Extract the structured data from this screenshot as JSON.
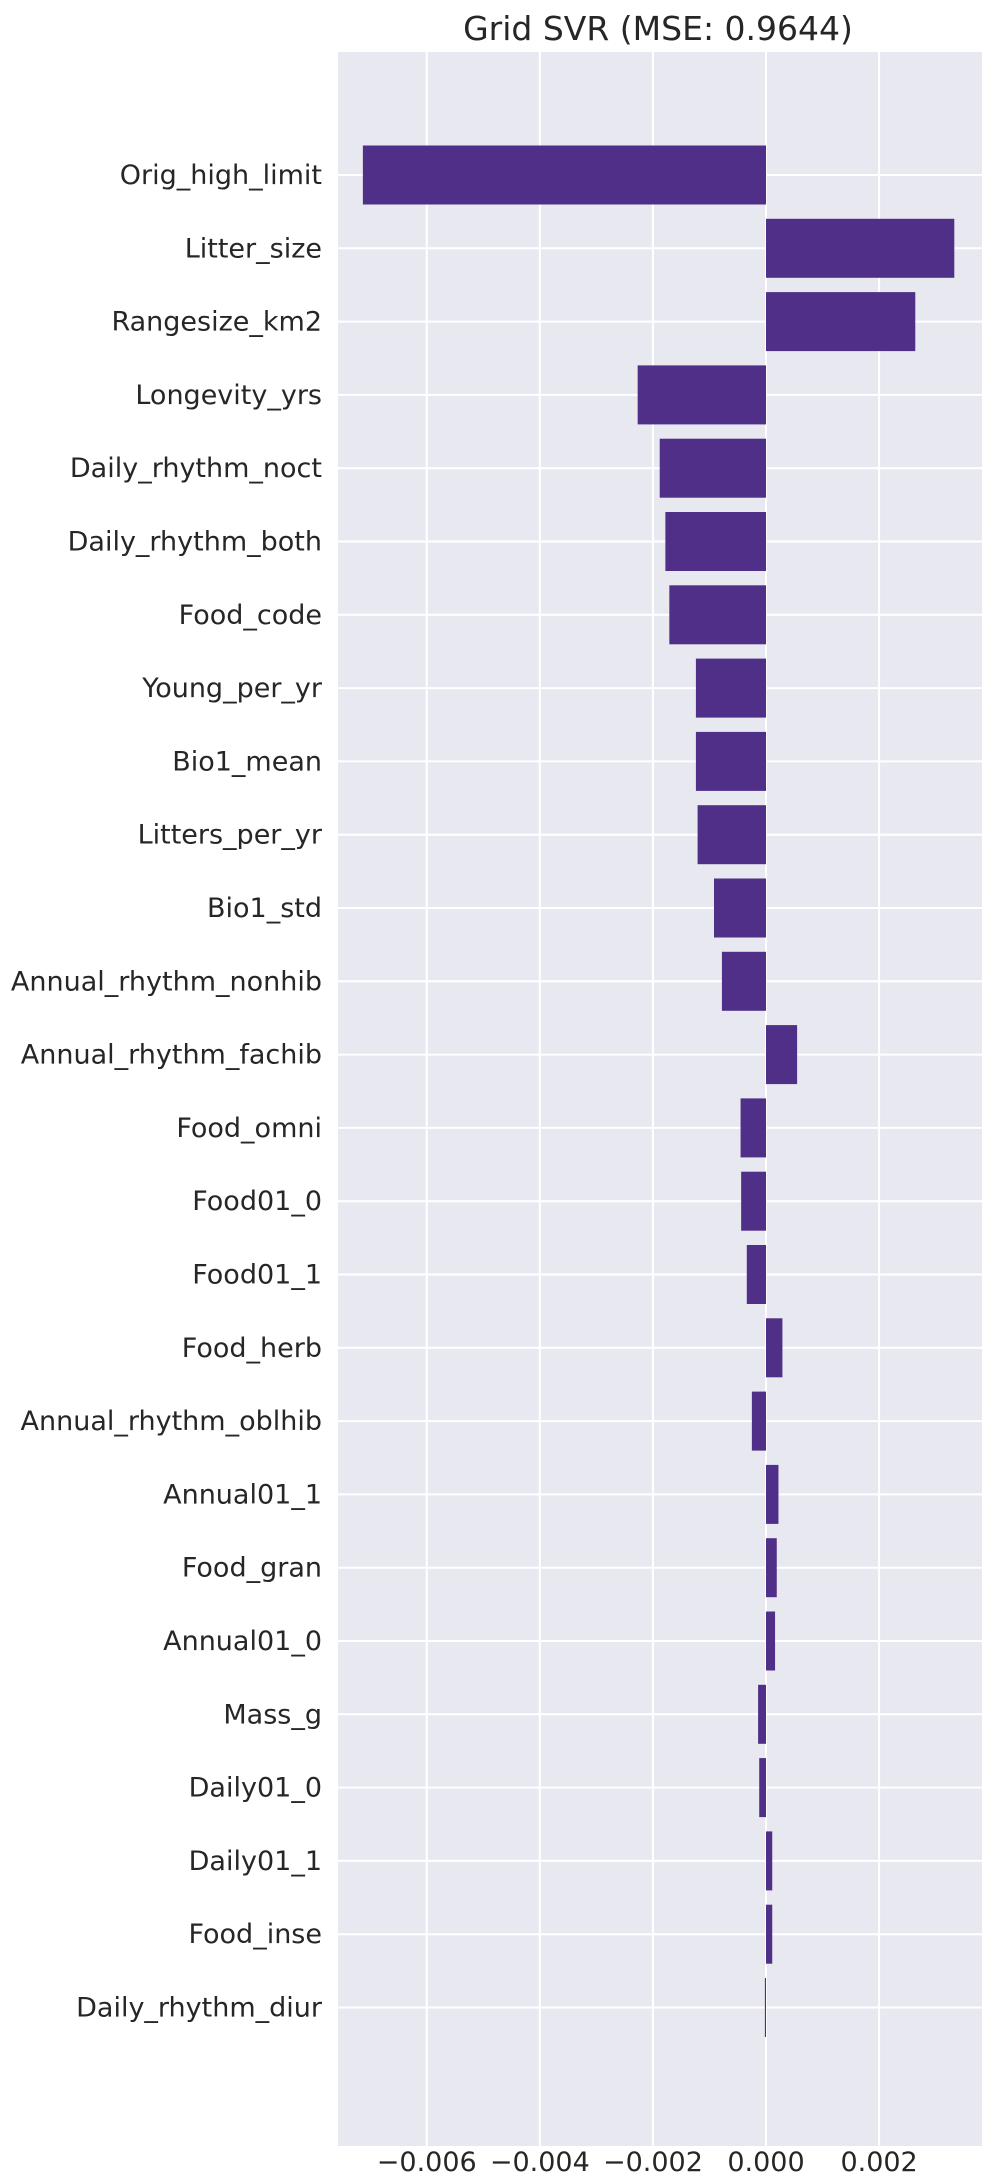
{
  "chart_data": {
    "type": "bar",
    "orientation": "horizontal",
    "title": "Grid SVR (MSE: 0.9644)",
    "xlabel": "",
    "ylabel": "",
    "xlim": [
      -0.00757,
      0.00382
    ],
    "xticks": [
      -0.006,
      -0.004,
      -0.002,
      0.0,
      0.002
    ],
    "xtick_labels": [
      "−0.006",
      "−0.004",
      "−0.002",
      "0.000",
      "0.002"
    ],
    "grid": true,
    "colors": {
      "bar": "#4f2f87",
      "plot_bg": "#e8e8f0",
      "grid": "#ffffff",
      "text": "#262626"
    },
    "categories": [
      "Orig_high_limit",
      "Litter_size",
      "Rangesize_km2",
      "Longevity_yrs",
      "Daily_rhythm_noct",
      "Daily_rhythm_both",
      "Food_code",
      "Young_per_yr",
      "Bio1_mean",
      "Litters_per_yr",
      "Bio1_std",
      "Annual_rhythm_nonhib",
      "Annual_rhythm_fachib",
      "Food_omni",
      "Food01_0",
      "Food01_1",
      "Food_herb",
      "Annual_rhythm_oblhib",
      "Annual01_1",
      "Food_gran",
      "Annual01_0",
      "Mass_g",
      "Daily01_0",
      "Daily01_1",
      "Food_inse",
      "Daily_rhythm_diur"
    ],
    "values": [
      -0.00713,
      0.00333,
      0.00264,
      -0.00227,
      -0.00188,
      -0.00178,
      -0.00171,
      -0.00124,
      -0.00124,
      -0.00121,
      -0.00092,
      -0.00078,
      0.00055,
      -0.00045,
      -0.00044,
      -0.00034,
      0.00029,
      -0.00025,
      0.00022,
      0.00019,
      0.00016,
      -0.00014,
      -0.00012,
      0.00011,
      0.00011,
      -2e-05
    ]
  }
}
